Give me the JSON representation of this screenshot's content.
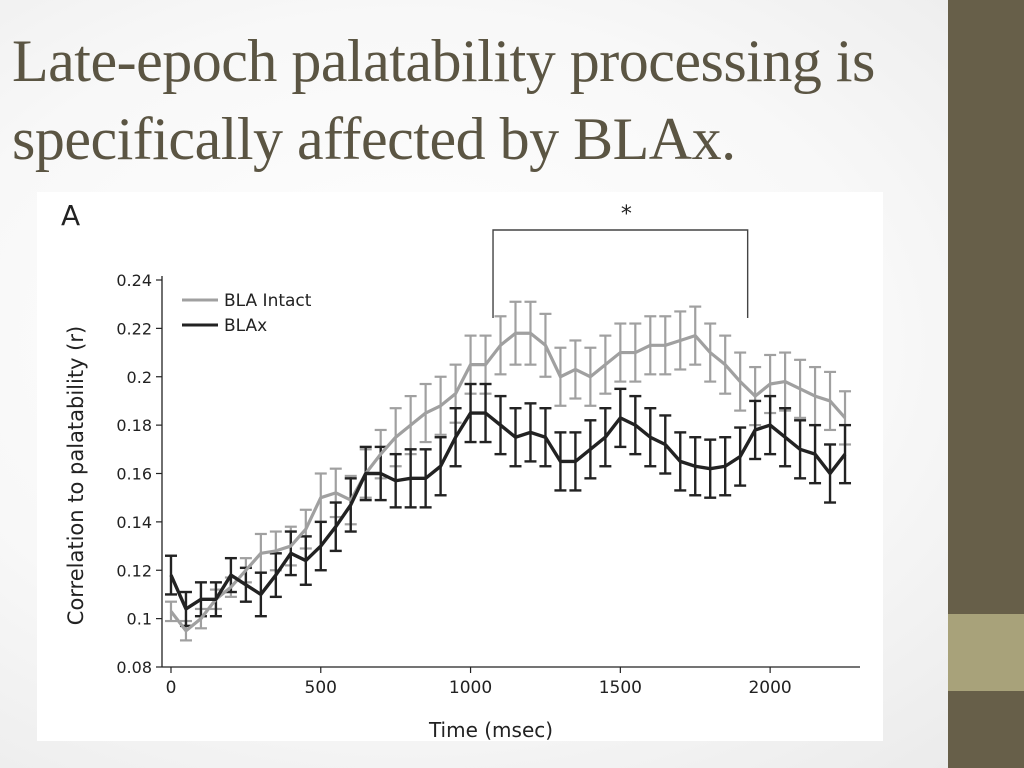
{
  "slide": {
    "title": "Late-epoch palatability processing is specifically affected by BLAx.",
    "colors": {
      "title": "#5b5543",
      "sidebar": "#675f49",
      "sidebar_accent": "#a8a27a"
    }
  },
  "chart_data": {
    "type": "line",
    "panel_label": "A",
    "xlabel": "Time (msec)",
    "ylabel": "Correlation to palatability (r)",
    "xlim": [
      -30,
      2300
    ],
    "ylim": [
      0.08,
      0.24
    ],
    "xticks": [
      0,
      500,
      1000,
      1500,
      2000
    ],
    "yticks": [
      0.08,
      0.1,
      0.12,
      0.14,
      0.16,
      0.18,
      0.2,
      0.22,
      0.24
    ],
    "ytick_labels": [
      "0.08",
      "0.1",
      "0.12",
      "0.14",
      "0.16",
      "0.18",
      "0.2",
      "0.22",
      "0.24"
    ],
    "legend_position": "top-left",
    "significance": {
      "label": "*",
      "x_start": 1075,
      "x_end": 1925
    },
    "x": [
      0,
      50,
      100,
      150,
      200,
      250,
      300,
      350,
      400,
      450,
      500,
      550,
      600,
      650,
      700,
      750,
      800,
      850,
      900,
      950,
      1000,
      1050,
      1100,
      1150,
      1200,
      1250,
      1300,
      1350,
      1400,
      1450,
      1500,
      1550,
      1600,
      1650,
      1700,
      1750,
      1800,
      1850,
      1900,
      1950,
      2000,
      2050,
      2100,
      2150,
      2200,
      2250
    ],
    "series": [
      {
        "name": "BLA Intact",
        "color": "#a0a0a0",
        "values": [
          0.103,
          0.095,
          0.1,
          0.108,
          0.113,
          0.12,
          0.127,
          0.128,
          0.13,
          0.137,
          0.15,
          0.152,
          0.149,
          0.16,
          0.168,
          0.175,
          0.18,
          0.185,
          0.188,
          0.193,
          0.205,
          0.205,
          0.213,
          0.218,
          0.218,
          0.213,
          0.2,
          0.203,
          0.2,
          0.205,
          0.21,
          0.21,
          0.213,
          0.213,
          0.215,
          0.217,
          0.21,
          0.205,
          0.198,
          0.192,
          0.197,
          0.198,
          0.195,
          0.192,
          0.19,
          0.183
        ],
        "errors": [
          0.004,
          0.004,
          0.004,
          0.004,
          0.004,
          0.005,
          0.008,
          0.008,
          0.008,
          0.008,
          0.01,
          0.01,
          0.01,
          0.01,
          0.01,
          0.012,
          0.012,
          0.012,
          0.012,
          0.012,
          0.012,
          0.012,
          0.012,
          0.013,
          0.013,
          0.013,
          0.012,
          0.012,
          0.012,
          0.012,
          0.012,
          0.012,
          0.012,
          0.012,
          0.012,
          0.012,
          0.012,
          0.012,
          0.012,
          0.012,
          0.012,
          0.012,
          0.012,
          0.012,
          0.012,
          0.011
        ]
      },
      {
        "name": "BLAx",
        "color": "#222222",
        "values": [
          0.118,
          0.104,
          0.108,
          0.108,
          0.118,
          0.114,
          0.11,
          0.118,
          0.127,
          0.124,
          0.13,
          0.138,
          0.147,
          0.16,
          0.16,
          0.157,
          0.158,
          0.158,
          0.163,
          0.175,
          0.185,
          0.185,
          0.18,
          0.175,
          0.177,
          0.175,
          0.165,
          0.165,
          0.17,
          0.175,
          0.183,
          0.18,
          0.175,
          0.172,
          0.165,
          0.163,
          0.162,
          0.163,
          0.167,
          0.178,
          0.18,
          0.175,
          0.17,
          0.168,
          0.16,
          0.168
        ],
        "errors": [
          0.008,
          0.007,
          0.007,
          0.007,
          0.007,
          0.007,
          0.009,
          0.009,
          0.009,
          0.01,
          0.01,
          0.01,
          0.011,
          0.011,
          0.011,
          0.011,
          0.012,
          0.012,
          0.012,
          0.012,
          0.012,
          0.012,
          0.012,
          0.012,
          0.012,
          0.012,
          0.012,
          0.012,
          0.012,
          0.012,
          0.012,
          0.012,
          0.012,
          0.012,
          0.012,
          0.012,
          0.012,
          0.012,
          0.012,
          0.012,
          0.012,
          0.012,
          0.012,
          0.012,
          0.012,
          0.012
        ]
      }
    ]
  }
}
